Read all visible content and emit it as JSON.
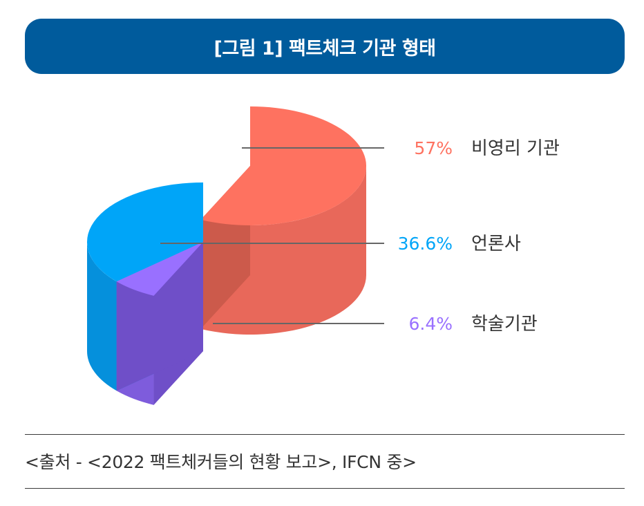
{
  "title": "[그림 1] 팩트체크 기관 형태",
  "source": "<출처 - <2022 팩트체커들의 현황 보고>, IFCN 중>",
  "chart_data": {
    "type": "pie",
    "style": "3d-cylinder",
    "title": "[그림 1] 팩트체크 기관 형태",
    "unit": "%",
    "categories": [
      "비영리 기관",
      "언론사",
      "학술기관"
    ],
    "values": [
      57,
      36.6,
      6.4
    ],
    "value_labels": [
      "57%",
      "36.6%",
      "6.4%"
    ],
    "colors": {
      "비영리 기관": {
        "top": "#fe7260",
        "side": "#e8685a",
        "cut": "#cc5a4b"
      },
      "언론사": {
        "top": "#00a5f8",
        "side": "#0590dc",
        "cut": "#0a82c8"
      },
      "학술기관": {
        "top": "#9970ff",
        "side": "#7e5cdc",
        "cut": "#6f4fc8"
      }
    },
    "exploded": "비영리 기관",
    "legend": "right, leader lines"
  }
}
